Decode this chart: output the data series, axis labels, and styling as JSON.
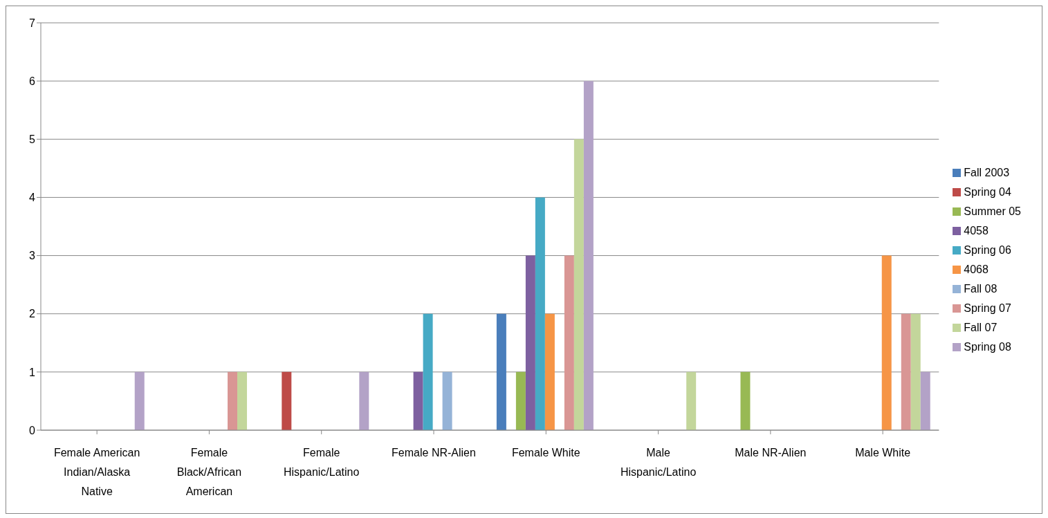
{
  "chart_data": {
    "type": "bar",
    "categories": [
      "Female American Indian/Alaska Native",
      "Female Black/African American",
      "Female Hispanic/Latino",
      "Female NR-Alien",
      "Female White",
      "Male Hispanic/Latino",
      "Male NR-Alien",
      "Male White"
    ],
    "series": [
      {
        "name": "Fall 2003",
        "color": "#4a7ebb",
        "values": [
          0,
          0,
          0,
          0,
          2,
          0,
          0,
          0
        ]
      },
      {
        "name": "Spring 04",
        "color": "#be4b48",
        "values": [
          0,
          0,
          1,
          0,
          0,
          0,
          0,
          0
        ]
      },
      {
        "name": "Summer 05",
        "color": "#98b954",
        "values": [
          0,
          0,
          0,
          0,
          1,
          0,
          1,
          0
        ]
      },
      {
        "name": "4058",
        "color": "#7d60a0",
        "values": [
          0,
          0,
          0,
          1,
          3,
          0,
          0,
          0
        ]
      },
      {
        "name": "Spring 06",
        "color": "#46aac5",
        "values": [
          0,
          0,
          0,
          2,
          4,
          0,
          0,
          0
        ]
      },
      {
        "name": "4068",
        "color": "#f69546",
        "values": [
          0,
          0,
          0,
          0,
          2,
          0,
          0,
          3
        ]
      },
      {
        "name": "Fall 08",
        "color": "#95b3d7",
        "values": [
          0,
          0,
          0,
          1,
          0,
          0,
          0,
          0
        ]
      },
      {
        "name": "Spring 07",
        "color": "#d99694",
        "values": [
          0,
          1,
          0,
          0,
          3,
          0,
          0,
          2
        ]
      },
      {
        "name": "Fall 07",
        "color": "#c3d69b",
        "values": [
          0,
          1,
          0,
          0,
          5,
          1,
          0,
          2
        ]
      },
      {
        "name": "Spring 08",
        "color": "#b3a2c7",
        "values": [
          1,
          0,
          1,
          0,
          6,
          0,
          0,
          1
        ]
      }
    ],
    "ylim": [
      0,
      7
    ],
    "yticks": [
      0,
      1,
      2,
      3,
      4,
      5,
      6,
      7
    ],
    "grid": "y",
    "legend": "right"
  }
}
